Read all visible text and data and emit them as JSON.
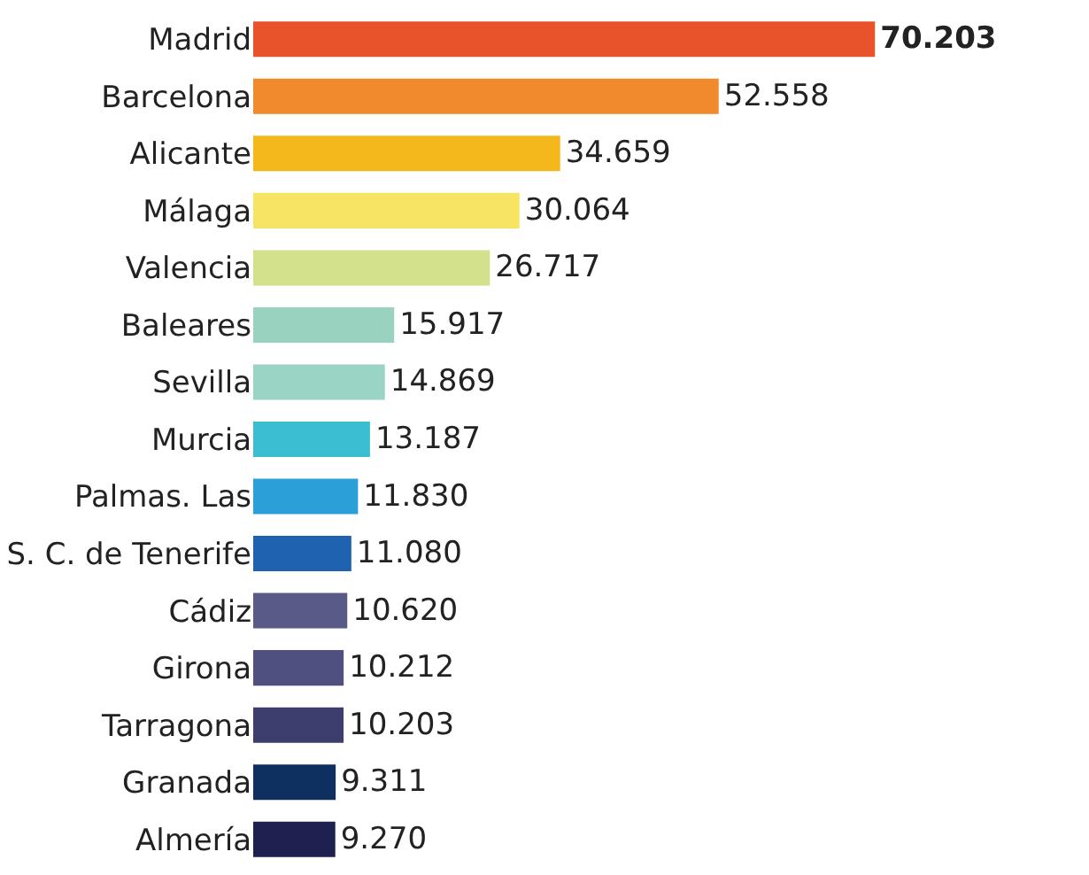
{
  "chart_data": {
    "type": "bar",
    "orientation": "horizontal",
    "categories": [
      "Madrid",
      "Barcelona",
      "Alicante",
      "Málaga",
      "Valencia",
      "Baleares",
      "Sevilla",
      "Murcia",
      "Palmas. Las",
      "S. C. de Tenerife",
      "Cádiz",
      "Girona",
      "Tarragona",
      "Granada",
      "Almería"
    ],
    "values": [
      70203,
      52558,
      34659,
      30064,
      26717,
      15917,
      14869,
      13187,
      11830,
      11080,
      10620,
      10212,
      10203,
      9311,
      9270
    ],
    "value_labels": [
      "70.203",
      "52.558",
      "34.659",
      "30.064",
      "26.717",
      "15.917",
      "14.869",
      "13.187",
      "11.830",
      "11.080",
      "10.620",
      "10.212",
      "10.203",
      "9.311",
      "9.270"
    ],
    "colors": [
      "#e8532b",
      "#f08a2c",
      "#f5b81c",
      "#f7e463",
      "#d3e08c",
      "#99d3bf",
      "#9ad4c4",
      "#3bbfd0",
      "#2a9fd8",
      "#1f63b0",
      "#5a5a88",
      "#4f4f80",
      "#3d3d6e",
      "#0e3060",
      "#1e2050"
    ]
  }
}
